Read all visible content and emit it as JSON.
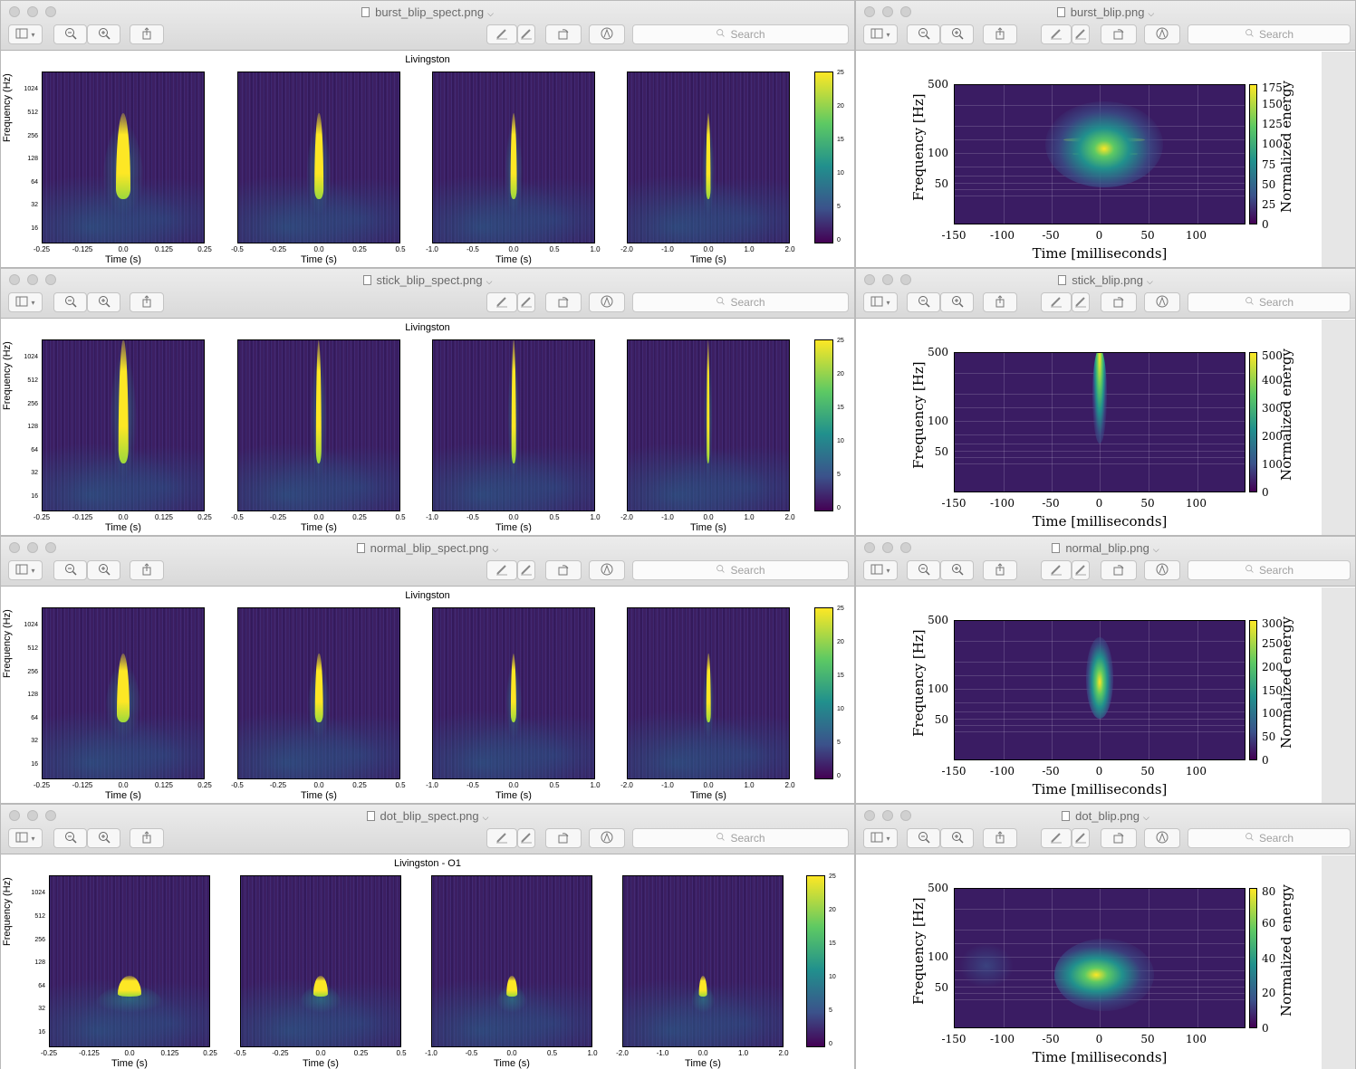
{
  "toolbar": {
    "search_placeholder": "Search"
  },
  "windows": [
    {
      "left_file": "burst_blip_spect.png",
      "right_file": "burst_blip.png",
      "title": "Livingston",
      "right_cbar_ticks": [
        "175",
        "150",
        "125",
        "100",
        "75",
        "50",
        "25",
        "0"
      ],
      "glitch": "burst"
    },
    {
      "left_file": "stick_blip_spect.png",
      "right_file": "stick_blip.png",
      "title": "Livingston",
      "right_cbar_ticks": [
        "500",
        "400",
        "300",
        "200",
        "100",
        "0"
      ],
      "glitch": "stick"
    },
    {
      "left_file": "normal_blip_spect.png",
      "right_file": "normal_blip.png",
      "title": "Livingston",
      "right_cbar_ticks": [
        "300",
        "250",
        "200",
        "150",
        "100",
        "50",
        "0"
      ],
      "glitch": "normal"
    },
    {
      "left_file": "dot_blip_spect.png",
      "right_file": "dot_blip.png",
      "title": "Livingston - O1",
      "right_cbar_ticks": [
        "80",
        "60",
        "40",
        "20",
        "0"
      ],
      "glitch": "dot"
    }
  ],
  "left_axes": {
    "ylabel": "Frequency (Hz)",
    "xlabel": "Time (s)",
    "yticks": [
      "1024",
      "512",
      "256",
      "128",
      "64",
      "32",
      "16"
    ],
    "xticks": [
      [
        "-0.25",
        "-0.125",
        "0.0",
        "0.125",
        "0.25"
      ],
      [
        "-0.5",
        "-0.25",
        "0.0",
        "0.25",
        "0.5"
      ],
      [
        "-1.0",
        "-0.5",
        "0.0",
        "0.5",
        "1.0"
      ],
      [
        "-2.0",
        "-1.0",
        "0.0",
        "1.0",
        "2.0"
      ]
    ],
    "cbar_ticks": [
      "25",
      "20",
      "15",
      "10",
      "5",
      "0"
    ]
  },
  "right_axes": {
    "ylabel": "Frequency [Hz]",
    "xlabel": "Time [milliseconds]",
    "yticks": [
      "500",
      "100",
      "50"
    ],
    "xticks": [
      "-150",
      "-100",
      "-50",
      "0",
      "50",
      "100"
    ],
    "cbar_label": "Normalized energy"
  }
}
